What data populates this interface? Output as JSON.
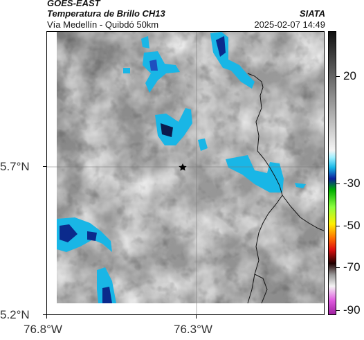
{
  "header": {
    "satellite": "GOES-EAST",
    "product": "Temperatura de Brillo CH13",
    "route": "Vía Medellín - Quibdó 50km",
    "organization": "SIATA",
    "timestamp": "2025-02-07 14:49"
  },
  "map": {
    "lat_labels": [
      "5.7°N",
      "5.2°N"
    ],
    "lon_labels": [
      "76.8°W",
      "76.3°W"
    ],
    "marker": "star-icon"
  },
  "colorbar": {
    "labels": [
      "20",
      "-30",
      "-50",
      "-70",
      "-90"
    ],
    "scale_colors": [
      "#e020c0",
      "#ffffff",
      "#000000",
      "#ff2000",
      "#ffff00",
      "#00cc00",
      "#0000ff",
      "#00ccff",
      "#ffffff",
      "#000000"
    ]
  },
  "chart_data": {
    "type": "heatmap",
    "title": "Temperatura de Brillo CH13",
    "xlabel": "",
    "ylabel": "",
    "x_ticks": [
      "76.8°W",
      "76.3°W"
    ],
    "y_ticks": [
      "5.7°N",
      "5.2°N"
    ],
    "colorbar_ticks": [
      20,
      -30,
      -50,
      -70,
      -90
    ]
  }
}
